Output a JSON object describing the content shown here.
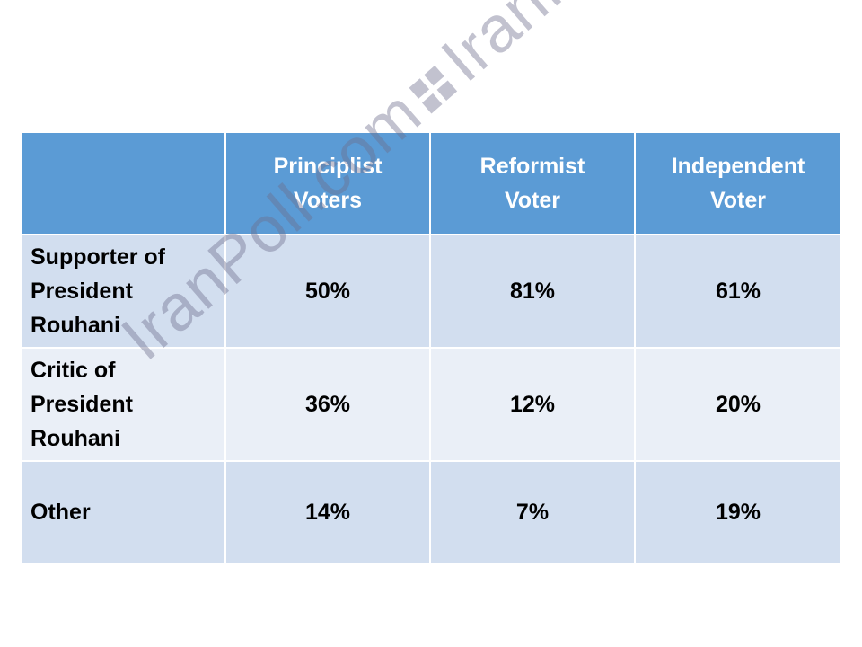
{
  "chart_data": {
    "type": "table",
    "columns": [
      "",
      "Principlist Voters",
      "Reformist Voter",
      "Independent Voter"
    ],
    "column_lines": [
      [],
      [
        "Principlist",
        "Voters"
      ],
      [
        "Reformist",
        "Voter"
      ],
      [
        "Independent",
        "Voter"
      ]
    ],
    "rows": [
      {
        "label": "Supporter of President Rouhani",
        "label_lines": [
          "Supporter of",
          "President",
          "Rouhani"
        ],
        "values": [
          "50%",
          "81%",
          "61%"
        ]
      },
      {
        "label": "Critic of President Rouhani",
        "label_lines": [
          "Critic of",
          "President",
          "Rouhani"
        ],
        "values": [
          "36%",
          "12%",
          "20%"
        ]
      },
      {
        "label": "Other",
        "label_lines": [
          "Other"
        ],
        "values": [
          "14%",
          "7%",
          "19%"
        ]
      }
    ]
  },
  "watermark": {
    "left": "IranPoll.com",
    "right": "IranPoll.com"
  },
  "colors": {
    "header_bg": "#5b9bd5",
    "header_text": "#ffffff",
    "row_dark": "#d2deef",
    "row_light": "#eaeff7"
  }
}
